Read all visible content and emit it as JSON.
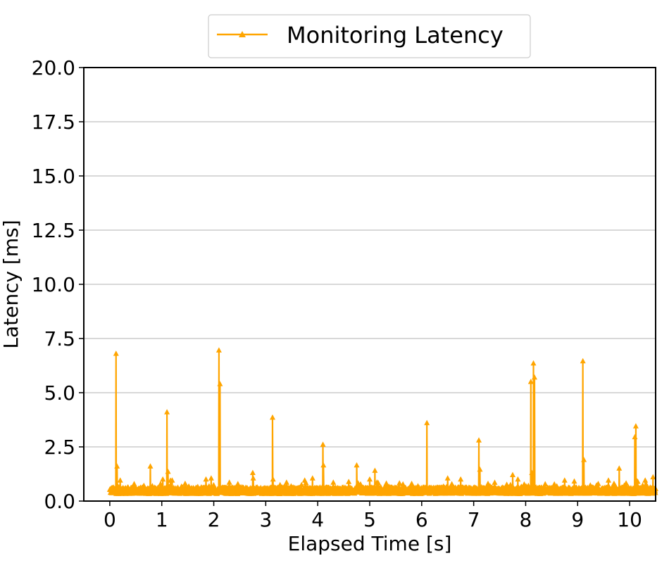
{
  "colors": {
    "series": "#FFA500",
    "grid": "#b0b0b0",
    "axis": "#000000"
  },
  "chart_data": {
    "type": "line",
    "title": "",
    "xlabel": "Elapsed Time [s]",
    "ylabel": "Latency [ms]",
    "xlim": [
      -0.5,
      10.5
    ],
    "ylim": [
      0,
      20
    ],
    "xticks": [
      0,
      1,
      2,
      3,
      4,
      5,
      6,
      7,
      8,
      9,
      10
    ],
    "xtick_labels": [
      "0",
      "1",
      "2",
      "3",
      "4",
      "5",
      "6",
      "7",
      "8",
      "9",
      "10"
    ],
    "yticks": [
      0,
      2.5,
      5,
      7.5,
      10,
      12.5,
      15,
      17.5,
      20
    ],
    "ytick_labels": [
      "0.0",
      "2.5",
      "5.0",
      "7.5",
      "10.0",
      "12.5",
      "15.0",
      "17.5",
      "20.0"
    ],
    "grid": "horizontal",
    "legend_position": "top-center",
    "marker": "triangle-up",
    "series": [
      {
        "name": "Monitoring Latency",
        "color": "#FFA500",
        "baseline_ms": 0.45,
        "peaks": [
          [
            0.12,
            6.8
          ],
          [
            0.14,
            1.6
          ],
          [
            0.2,
            0.95
          ],
          [
            0.78,
            1.6
          ],
          [
            1.02,
            1.0
          ],
          [
            1.1,
            4.1
          ],
          [
            1.12,
            1.35
          ],
          [
            1.2,
            0.95
          ],
          [
            1.45,
            0.8
          ],
          [
            1.85,
            1.0
          ],
          [
            1.95,
            1.05
          ],
          [
            2.1,
            6.95
          ],
          [
            2.12,
            5.4
          ],
          [
            2.3,
            0.85
          ],
          [
            2.75,
            1.3
          ],
          [
            2.76,
            1.05
          ],
          [
            3.13,
            3.85
          ],
          [
            3.14,
            1.0
          ],
          [
            3.4,
            0.85
          ],
          [
            3.75,
            0.95
          ],
          [
            3.9,
            1.05
          ],
          [
            4.1,
            2.6
          ],
          [
            4.11,
            1.65
          ],
          [
            4.3,
            0.85
          ],
          [
            4.75,
            1.65
          ],
          [
            5.0,
            1.0
          ],
          [
            5.1,
            1.4
          ],
          [
            6.1,
            3.6
          ],
          [
            6.5,
            1.05
          ],
          [
            6.75,
            1.0
          ],
          [
            7.1,
            2.8
          ],
          [
            7.12,
            1.45
          ],
          [
            7.75,
            1.2
          ],
          [
            7.85,
            1.0
          ],
          [
            8.1,
            5.5
          ],
          [
            8.12,
            1.3
          ],
          [
            8.15,
            6.35
          ],
          [
            8.17,
            5.7
          ],
          [
            8.75,
            0.95
          ],
          [
            9.1,
            6.45
          ],
          [
            9.12,
            1.9
          ],
          [
            9.7,
            0.8
          ],
          [
            9.8,
            1.5
          ],
          [
            10.1,
            2.95
          ],
          [
            10.12,
            3.45
          ],
          [
            10.3,
            0.95
          ],
          [
            10.45,
            1.1
          ]
        ]
      }
    ]
  }
}
